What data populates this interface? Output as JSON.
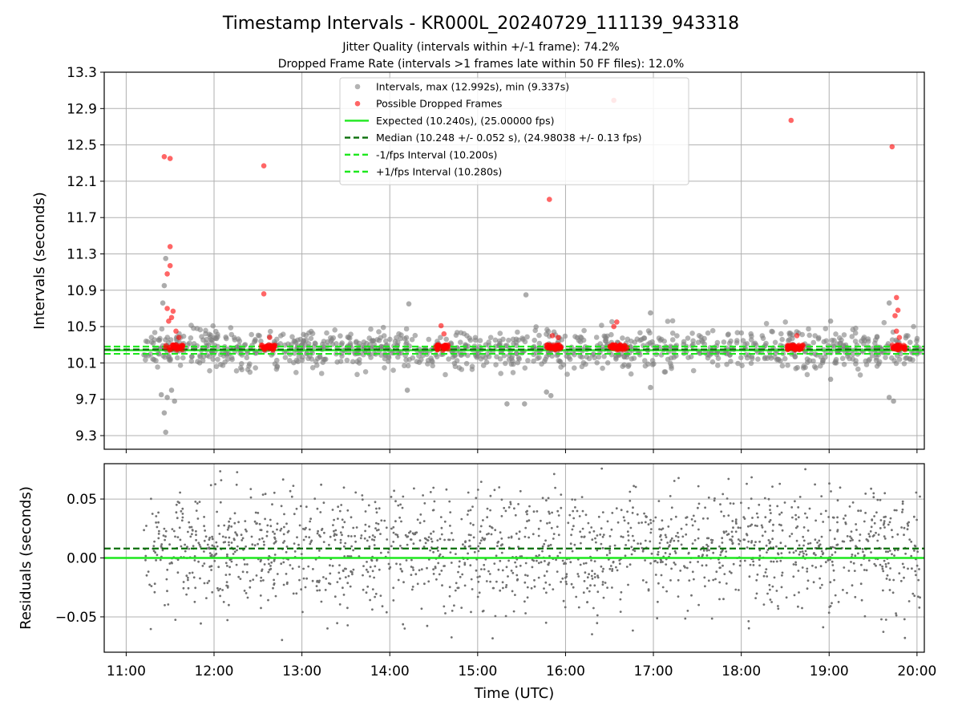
{
  "figure": {
    "title": "Timestamp Intervals - KR000L_20240729_111139_943318",
    "subtitle_1": "Jitter Quality (intervals within +/-1 frame): 74.2%",
    "subtitle_2": "Dropped Frame Rate (intervals >1 frames late within 50 FF files): 12.0%"
  },
  "chart_data": [
    {
      "type": "scatter",
      "panel": "intervals",
      "ylabel": "Intervals (seconds)",
      "xlabel": "",
      "x_unit": "time of day (UTC, hours)",
      "xlim": [
        "10:45",
        "20:05"
      ],
      "ylim": [
        9.15,
        13.3
      ],
      "y_ticks": [
        9.3,
        9.7,
        10.1,
        10.5,
        10.9,
        11.3,
        11.7,
        12.1,
        12.5,
        12.9,
        13.3
      ],
      "y_tick_labels": [
        "9.3",
        "9.7",
        "10.1",
        "10.5",
        "10.9",
        "11.3",
        "11.7",
        "12.1",
        "12.5",
        "12.9",
        "13.3"
      ],
      "grid": true,
      "legend_placement": "top-center",
      "legend": [
        {
          "label": "Intervals, max (12.992s), min (9.337s)",
          "marker": "dot",
          "color": "#808080"
        },
        {
          "label": "Possible Dropped Frames",
          "marker": "dot",
          "color": "#ff0000"
        },
        {
          "label": "Expected (10.240s), (25.00000 fps)",
          "marker": "solid-line",
          "color": "#1ee81e"
        },
        {
          "label": "Median (10.248 +/- 0.052 s), (24.98038 +/- 0.13 fps)",
          "marker": "dashed-line",
          "color": "#0a6e0a"
        },
        {
          "label": "-1/fps Interval (10.200s)",
          "marker": "dashed-line",
          "color": "#1ee81e"
        },
        {
          "label": "+1/fps Interval (10.280s)",
          "marker": "dashed-line",
          "color": "#1ee81e"
        }
      ],
      "reference_lines": [
        {
          "name": "Expected",
          "y": 10.24,
          "style": "solid",
          "color": "#1ee81e"
        },
        {
          "name": "Median",
          "y": 10.248,
          "style": "dashed",
          "color": "#0a6e0a"
        },
        {
          "name": "-1/fps Interval",
          "y": 10.2,
          "style": "dashed",
          "color": "#1ee81e"
        },
        {
          "name": "+1/fps Interval",
          "y": 10.28,
          "style": "dashed",
          "color": "#1ee81e"
        }
      ],
      "series": [
        {
          "name": "Intervals",
          "color": "#808080",
          "point_count_approx": 1400,
          "range": [
            9.337,
            12.992
          ],
          "typical_band": [
            9.95,
            10.55
          ],
          "x_range": [
            "11:12",
            "20:03"
          ],
          "outliers": [
            {
              "x": "11:27",
              "y": 9.337
            },
            {
              "x": "11:26",
              "y": 9.55
            },
            {
              "x": "11:24",
              "y": 9.75
            },
            {
              "x": "11:28",
              "y": 9.72
            },
            {
              "x": "11:31",
              "y": 9.8
            },
            {
              "x": "11:33",
              "y": 9.68
            },
            {
              "x": "11:26",
              "y": 10.95
            },
            {
              "x": "11:27",
              "y": 11.25
            },
            {
              "x": "11:25",
              "y": 10.76
            },
            {
              "x": "14:12",
              "y": 9.8
            },
            {
              "x": "14:13",
              "y": 10.75
            },
            {
              "x": "15:20",
              "y": 9.65
            },
            {
              "x": "15:32",
              "y": 9.65
            },
            {
              "x": "15:33",
              "y": 10.85
            },
            {
              "x": "15:47",
              "y": 9.78
            },
            {
              "x": "15:50",
              "y": 9.74
            },
            {
              "x": "16:58",
              "y": 10.65
            },
            {
              "x": "16:58",
              "y": 9.83
            },
            {
              "x": "19:01",
              "y": 9.92
            },
            {
              "x": "19:01",
              "y": 10.56
            },
            {
              "x": "19:41",
              "y": 9.72
            },
            {
              "x": "19:44",
              "y": 9.68
            },
            {
              "x": "19:41",
              "y": 10.76
            }
          ]
        },
        {
          "name": "Possible Dropped Frames",
          "color": "#ff0000",
          "points": [
            {
              "x": "11:26",
              "y": 12.37
            },
            {
              "x": "11:30",
              "y": 12.35
            },
            {
              "x": "11:30",
              "y": 11.38
            },
            {
              "x": "11:30",
              "y": 11.17
            },
            {
              "x": "11:28",
              "y": 11.08
            },
            {
              "x": "11:28",
              "y": 10.7
            },
            {
              "x": "11:32",
              "y": 10.67
            },
            {
              "x": "11:31",
              "y": 10.6
            },
            {
              "x": "11:29",
              "y": 10.56
            },
            {
              "x": "11:34",
              "y": 10.45
            },
            {
              "x": "11:36",
              "y": 10.38
            },
            {
              "x": "12:34",
              "y": 12.27
            },
            {
              "x": "12:34",
              "y": 10.86
            },
            {
              "x": "12:38",
              "y": 10.38
            },
            {
              "x": "14:35",
              "y": 10.51
            },
            {
              "x": "14:37",
              "y": 10.42
            },
            {
              "x": "15:49",
              "y": 11.9
            },
            {
              "x": "15:51",
              "y": 10.4
            },
            {
              "x": "15:55",
              "y": 10.38
            },
            {
              "x": "16:33",
              "y": 12.99
            },
            {
              "x": "16:35",
              "y": 10.55
            },
            {
              "x": "16:33",
              "y": 10.5
            },
            {
              "x": "18:34",
              "y": 12.77
            },
            {
              "x": "18:38",
              "y": 10.4
            },
            {
              "x": "19:43",
              "y": 12.48
            },
            {
              "x": "19:46",
              "y": 10.82
            },
            {
              "x": "19:47",
              "y": 10.68
            },
            {
              "x": "19:45",
              "y": 10.62
            },
            {
              "x": "19:46",
              "y": 10.45
            },
            {
              "x": "19:48",
              "y": 10.38
            }
          ],
          "clusters_near_baseline": [
            {
              "x_range": [
                "11:27",
                "11:39"
              ],
              "y": 10.27
            },
            {
              "x_range": [
                "12:32",
                "12:42"
              ],
              "y": 10.27
            },
            {
              "x_range": [
                "14:31",
                "14:40"
              ],
              "y": 10.27
            },
            {
              "x_range": [
                "15:46",
                "15:57"
              ],
              "y": 10.27
            },
            {
              "x_range": [
                "16:30",
                "16:42"
              ],
              "y": 10.27
            },
            {
              "x_range": [
                "18:31",
                "18:43"
              ],
              "y": 10.27
            },
            {
              "x_range": [
                "19:43",
                "19:52"
              ],
              "y": 10.27
            }
          ]
        }
      ]
    },
    {
      "type": "scatter",
      "panel": "residuals",
      "ylabel": "Residuals (seconds)",
      "xlabel": "Time (UTC)",
      "xlim": [
        "10:45",
        "20:05"
      ],
      "ylim": [
        -0.08,
        0.08
      ],
      "y_ticks": [
        -0.05,
        0.0,
        0.05
      ],
      "y_tick_labels": [
        "−0.05",
        "0.00",
        "0.05"
      ],
      "x_ticks": [
        "11:00",
        "12:00",
        "13:00",
        "14:00",
        "15:00",
        "16:00",
        "17:00",
        "18:00",
        "19:00",
        "20:00"
      ],
      "grid": true,
      "reference_lines": [
        {
          "name": "Expected",
          "y": 0.0,
          "style": "solid",
          "color": "#1ee81e"
        },
        {
          "name": "Median",
          "y": 0.008,
          "style": "dashed",
          "color": "#0a6e0a"
        }
      ],
      "series": [
        {
          "name": "Residuals",
          "color": "#707070",
          "point_count_approx": 2000,
          "range": [
            -0.08,
            0.08
          ],
          "typical_band": [
            -0.03,
            0.04
          ],
          "x_range": [
            "11:12",
            "20:03"
          ]
        }
      ]
    }
  ]
}
